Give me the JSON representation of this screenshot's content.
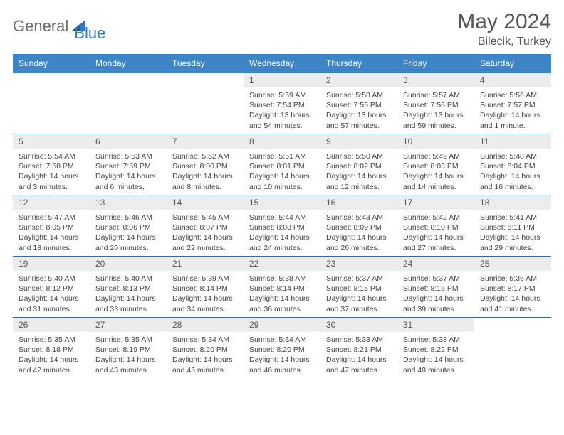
{
  "brand": {
    "part1": "General",
    "part2": "Blue"
  },
  "title": {
    "month": "May 2024",
    "location": "Bilecik, Turkey"
  },
  "colors": {
    "header_bg": "#3d85c6",
    "header_text": "#ffffff",
    "row_border": "#2f6aa0",
    "daynum_bg": "#ececec",
    "body_text": "#444444",
    "logo_grey": "#6b6b6b",
    "logo_blue": "#2f7abf"
  },
  "weekdays": [
    "Sunday",
    "Monday",
    "Tuesday",
    "Wednesday",
    "Thursday",
    "Friday",
    "Saturday"
  ],
  "weeks": [
    [
      {
        "n": "",
        "l1": "",
        "l2": "",
        "l3": "",
        "l4": "",
        "empty": true
      },
      {
        "n": "",
        "l1": "",
        "l2": "",
        "l3": "",
        "l4": "",
        "empty": true
      },
      {
        "n": "",
        "l1": "",
        "l2": "",
        "l3": "",
        "l4": "",
        "empty": true
      },
      {
        "n": "1",
        "l1": "Sunrise: 5:59 AM",
        "l2": "Sunset: 7:54 PM",
        "l3": "Daylight: 13 hours",
        "l4": "and 54 minutes."
      },
      {
        "n": "2",
        "l1": "Sunrise: 5:58 AM",
        "l2": "Sunset: 7:55 PM",
        "l3": "Daylight: 13 hours",
        "l4": "and 57 minutes."
      },
      {
        "n": "3",
        "l1": "Sunrise: 5:57 AM",
        "l2": "Sunset: 7:56 PM",
        "l3": "Daylight: 13 hours",
        "l4": "and 59 minutes."
      },
      {
        "n": "4",
        "l1": "Sunrise: 5:56 AM",
        "l2": "Sunset: 7:57 PM",
        "l3": "Daylight: 14 hours",
        "l4": "and 1 minute."
      }
    ],
    [
      {
        "n": "5",
        "l1": "Sunrise: 5:54 AM",
        "l2": "Sunset: 7:58 PM",
        "l3": "Daylight: 14 hours",
        "l4": "and 3 minutes."
      },
      {
        "n": "6",
        "l1": "Sunrise: 5:53 AM",
        "l2": "Sunset: 7:59 PM",
        "l3": "Daylight: 14 hours",
        "l4": "and 6 minutes."
      },
      {
        "n": "7",
        "l1": "Sunrise: 5:52 AM",
        "l2": "Sunset: 8:00 PM",
        "l3": "Daylight: 14 hours",
        "l4": "and 8 minutes."
      },
      {
        "n": "8",
        "l1": "Sunrise: 5:51 AM",
        "l2": "Sunset: 8:01 PM",
        "l3": "Daylight: 14 hours",
        "l4": "and 10 minutes."
      },
      {
        "n": "9",
        "l1": "Sunrise: 5:50 AM",
        "l2": "Sunset: 8:02 PM",
        "l3": "Daylight: 14 hours",
        "l4": "and 12 minutes."
      },
      {
        "n": "10",
        "l1": "Sunrise: 5:49 AM",
        "l2": "Sunset: 8:03 PM",
        "l3": "Daylight: 14 hours",
        "l4": "and 14 minutes."
      },
      {
        "n": "11",
        "l1": "Sunrise: 5:48 AM",
        "l2": "Sunset: 8:04 PM",
        "l3": "Daylight: 14 hours",
        "l4": "and 16 minutes."
      }
    ],
    [
      {
        "n": "12",
        "l1": "Sunrise: 5:47 AM",
        "l2": "Sunset: 8:05 PM",
        "l3": "Daylight: 14 hours",
        "l4": "and 18 minutes."
      },
      {
        "n": "13",
        "l1": "Sunrise: 5:46 AM",
        "l2": "Sunset: 8:06 PM",
        "l3": "Daylight: 14 hours",
        "l4": "and 20 minutes."
      },
      {
        "n": "14",
        "l1": "Sunrise: 5:45 AM",
        "l2": "Sunset: 8:07 PM",
        "l3": "Daylight: 14 hours",
        "l4": "and 22 minutes."
      },
      {
        "n": "15",
        "l1": "Sunrise: 5:44 AM",
        "l2": "Sunset: 8:08 PM",
        "l3": "Daylight: 14 hours",
        "l4": "and 24 minutes."
      },
      {
        "n": "16",
        "l1": "Sunrise: 5:43 AM",
        "l2": "Sunset: 8:09 PM",
        "l3": "Daylight: 14 hours",
        "l4": "and 26 minutes."
      },
      {
        "n": "17",
        "l1": "Sunrise: 5:42 AM",
        "l2": "Sunset: 8:10 PM",
        "l3": "Daylight: 14 hours",
        "l4": "and 27 minutes."
      },
      {
        "n": "18",
        "l1": "Sunrise: 5:41 AM",
        "l2": "Sunset: 8:11 PM",
        "l3": "Daylight: 14 hours",
        "l4": "and 29 minutes."
      }
    ],
    [
      {
        "n": "19",
        "l1": "Sunrise: 5:40 AM",
        "l2": "Sunset: 8:12 PM",
        "l3": "Daylight: 14 hours",
        "l4": "and 31 minutes."
      },
      {
        "n": "20",
        "l1": "Sunrise: 5:40 AM",
        "l2": "Sunset: 8:13 PM",
        "l3": "Daylight: 14 hours",
        "l4": "and 33 minutes."
      },
      {
        "n": "21",
        "l1": "Sunrise: 5:39 AM",
        "l2": "Sunset: 8:14 PM",
        "l3": "Daylight: 14 hours",
        "l4": "and 34 minutes."
      },
      {
        "n": "22",
        "l1": "Sunrise: 5:38 AM",
        "l2": "Sunset: 8:14 PM",
        "l3": "Daylight: 14 hours",
        "l4": "and 36 minutes."
      },
      {
        "n": "23",
        "l1": "Sunrise: 5:37 AM",
        "l2": "Sunset: 8:15 PM",
        "l3": "Daylight: 14 hours",
        "l4": "and 37 minutes."
      },
      {
        "n": "24",
        "l1": "Sunrise: 5:37 AM",
        "l2": "Sunset: 8:16 PM",
        "l3": "Daylight: 14 hours",
        "l4": "and 39 minutes."
      },
      {
        "n": "25",
        "l1": "Sunrise: 5:36 AM",
        "l2": "Sunset: 8:17 PM",
        "l3": "Daylight: 14 hours",
        "l4": "and 41 minutes."
      }
    ],
    [
      {
        "n": "26",
        "l1": "Sunrise: 5:35 AM",
        "l2": "Sunset: 8:18 PM",
        "l3": "Daylight: 14 hours",
        "l4": "and 42 minutes."
      },
      {
        "n": "27",
        "l1": "Sunrise: 5:35 AM",
        "l2": "Sunset: 8:19 PM",
        "l3": "Daylight: 14 hours",
        "l4": "and 43 minutes."
      },
      {
        "n": "28",
        "l1": "Sunrise: 5:34 AM",
        "l2": "Sunset: 8:20 PM",
        "l3": "Daylight: 14 hours",
        "l4": "and 45 minutes."
      },
      {
        "n": "29",
        "l1": "Sunrise: 5:34 AM",
        "l2": "Sunset: 8:20 PM",
        "l3": "Daylight: 14 hours",
        "l4": "and 46 minutes."
      },
      {
        "n": "30",
        "l1": "Sunrise: 5:33 AM",
        "l2": "Sunset: 8:21 PM",
        "l3": "Daylight: 14 hours",
        "l4": "and 47 minutes."
      },
      {
        "n": "31",
        "l1": "Sunrise: 5:33 AM",
        "l2": "Sunset: 8:22 PM",
        "l3": "Daylight: 14 hours",
        "l4": "and 49 minutes."
      },
      {
        "n": "",
        "l1": "",
        "l2": "",
        "l3": "",
        "l4": "",
        "empty": true
      }
    ]
  ]
}
